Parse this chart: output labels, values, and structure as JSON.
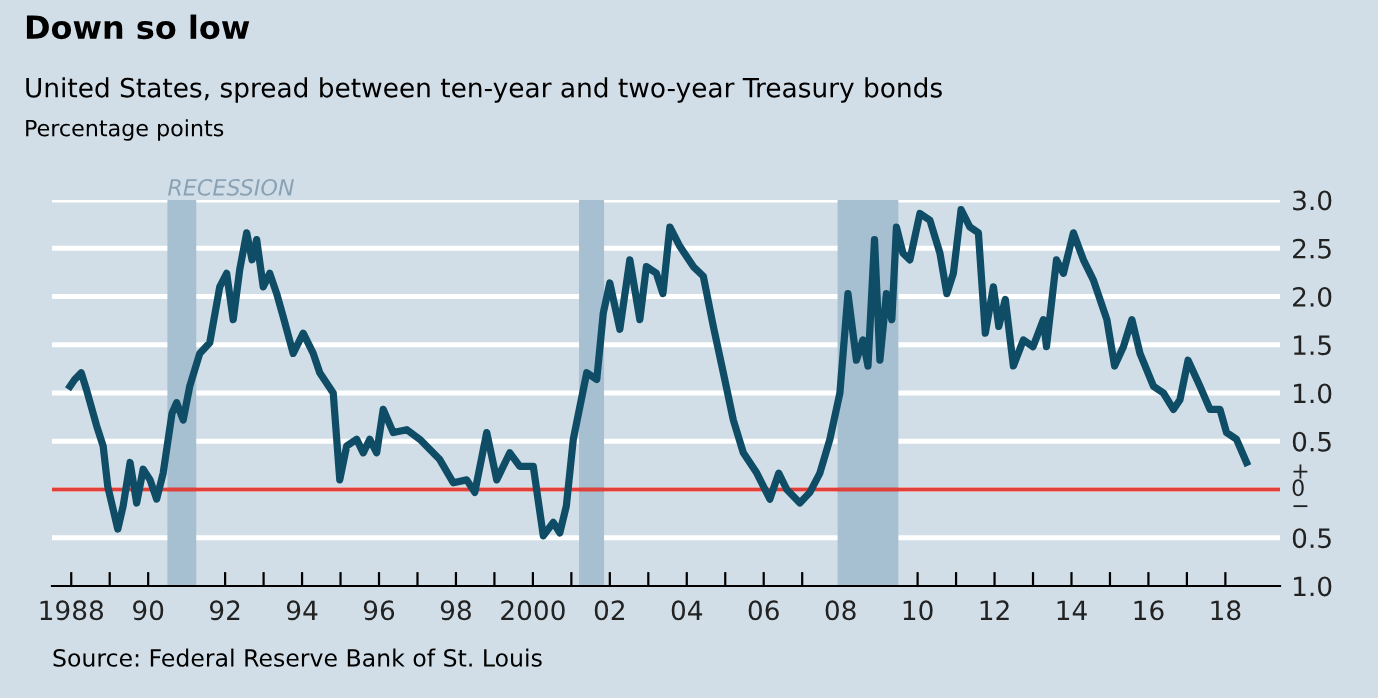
{
  "chart_data": {
    "type": "line",
    "title": "Down so low",
    "subtitle": "United States, spread between ten-year and two-year Treasury bonds",
    "ylabel": "Percentage points",
    "annotations": [
      "Source: Federal Reserve Bank of St. Louis"
    ],
    "x": [
      1987.97,
      1988.09,
      1988.26,
      1988.4,
      1988.66,
      1988.83,
      1988.95,
      1989.21,
      1989.35,
      1989.53,
      1989.7,
      1989.87,
      1990.05,
      1990.22,
      1990.39,
      1990.62,
      1990.74,
      1990.91,
      1991.08,
      1991.34,
      1991.6,
      1991.86,
      1992.04,
      1992.21,
      1992.38,
      1992.56,
      1992.7,
      1992.82,
      1992.99,
      1993.16,
      1993.34,
      1993.51,
      1993.77,
      1994.03,
      1994.29,
      1994.46,
      1994.81,
      1994.98,
      1995.16,
      1995.42,
      1995.59,
      1995.76,
      1995.94,
      1996.11,
      1996.37,
      1996.72,
      1997.06,
      1997.58,
      1997.93,
      1998.28,
      1998.49,
      1998.8,
      1999.06,
      1999.4,
      1999.66,
      2000.01,
      2000.27,
      2000.53,
      2000.7,
      2000.87,
      2001.05,
      2001.4,
      2001.66,
      2001.83,
      2002.0,
      2002.26,
      2002.52,
      2002.78,
      2002.95,
      2003.21,
      2003.38,
      2003.56,
      2003.82,
      2004.17,
      2004.43,
      2004.69,
      2004.95,
      2005.21,
      2005.47,
      2005.82,
      2006.16,
      2006.39,
      2006.6,
      2006.94,
      2007.2,
      2007.46,
      2007.72,
      2007.98,
      2008.19,
      2008.41,
      2008.58,
      2008.71,
      2008.88,
      2009.02,
      2009.19,
      2009.33,
      2009.45,
      2009.62,
      2009.8,
      2010.06,
      2010.32,
      2010.58,
      2010.76,
      2010.93,
      2011.13,
      2011.36,
      2011.58,
      2011.76,
      2011.97,
      2012.11,
      2012.28,
      2012.49,
      2012.75,
      2013.0,
      2013.27,
      2013.35,
      2013.61,
      2013.79,
      2014.05,
      2014.31,
      2014.57,
      2014.92,
      2015.12,
      2015.35,
      2015.57,
      2015.78,
      2016.13,
      2016.39,
      2016.65,
      2016.82,
      2017.03,
      2017.34,
      2017.6,
      2017.86,
      2018.03,
      2018.29,
      2018.55
    ],
    "series": [
      {
        "color": "#0f4c66",
        "values": [
          1.07,
          1.14,
          1.21,
          1.03,
          0.66,
          0.45,
          0.03,
          -0.41,
          -0.17,
          0.28,
          -0.14,
          0.21,
          0.1,
          -0.1,
          0.17,
          0.79,
          0.9,
          0.72,
          1.07,
          1.41,
          1.52,
          2.1,
          2.24,
          1.76,
          2.28,
          2.66,
          2.38,
          2.59,
          2.1,
          2.24,
          2.03,
          1.79,
          1.41,
          1.62,
          1.41,
          1.21,
          1.0,
          0.1,
          0.45,
          0.52,
          0.38,
          0.52,
          0.38,
          0.83,
          0.59,
          0.62,
          0.52,
          0.31,
          0.07,
          0.1,
          -0.03,
          0.59,
          0.1,
          0.38,
          0.24,
          0.24,
          -0.48,
          -0.34,
          -0.45,
          -0.17,
          0.52,
          1.21,
          1.14,
          1.83,
          2.14,
          1.66,
          2.38,
          1.76,
          2.31,
          2.24,
          2.03,
          2.72,
          2.52,
          2.31,
          2.21,
          1.69,
          1.21,
          0.72,
          0.38,
          0.17,
          -0.1,
          0.17,
          0.0,
          -0.14,
          -0.03,
          0.17,
          0.52,
          1.0,
          2.03,
          1.34,
          1.55,
          1.28,
          2.59,
          1.34,
          2.03,
          1.76,
          2.72,
          2.45,
          2.38,
          2.86,
          2.79,
          2.45,
          2.03,
          2.24,
          2.9,
          2.72,
          2.66,
          1.62,
          2.1,
          1.69,
          1.97,
          1.28,
          1.55,
          1.48,
          1.76,
          1.48,
          2.38,
          2.24,
          2.66,
          2.38,
          2.17,
          1.76,
          1.28,
          1.48,
          1.76,
          1.41,
          1.07,
          1.0,
          0.83,
          0.93,
          1.34,
          1.07,
          0.83,
          0.83,
          0.59,
          0.52,
          0.28
        ]
      }
    ],
    "xlim": [
      1987.5,
      2019.42
    ],
    "xticks": [
      1988,
      {
        "value": 1989,
        "label": null
      },
      {
        "value": 1990,
        "label": "90"
      },
      {
        "value": 1991,
        "label": null
      },
      {
        "value": 1992,
        "label": "92"
      },
      {
        "value": 1993,
        "label": null
      },
      {
        "value": 1994,
        "label": "94"
      },
      {
        "value": 1995,
        "label": null
      },
      {
        "value": 1996,
        "label": "96"
      },
      {
        "value": 1997,
        "label": null
      },
      {
        "value": 1998,
        "label": "98"
      },
      {
        "value": 1999,
        "label": null
      },
      2000,
      {
        "value": 2001,
        "label": null
      },
      {
        "value": 2002,
        "label": "02"
      },
      {
        "value": 2003,
        "label": null
      },
      {
        "value": 2004,
        "label": "04"
      },
      {
        "value": 2005,
        "label": null
      },
      {
        "value": 2006,
        "label": "06"
      },
      {
        "value": 2007,
        "label": null
      },
      {
        "value": 2008,
        "label": "08"
      },
      {
        "value": 2009,
        "label": null
      },
      {
        "value": 2010,
        "label": "10"
      },
      {
        "value": 2011,
        "label": null
      },
      {
        "value": 2012,
        "label": "12"
      },
      {
        "value": 2013,
        "label": null
      },
      {
        "value": 2014,
        "label": "14"
      },
      {
        "value": 2015,
        "label": null
      },
      {
        "value": 2016,
        "label": "16"
      },
      {
        "value": 2017,
        "label": null
      },
      {
        "value": 2018,
        "label": "18"
      }
    ],
    "ylim": [
      -1,
      3
    ],
    "yticks": [
      {
        "value": -1,
        "label": "1.0"
      },
      {
        "value": -0.5,
        "label": "0.5"
      },
      {
        "value": 0,
        "label": "+\n0\n−"
      },
      {
        "value": 0.5,
        "label": "0.5"
      },
      {
        "value": 1,
        "label": "1.0"
      },
      {
        "value": 1.5,
        "label": "1.5"
      },
      {
        "value": 2,
        "label": "2.0"
      },
      {
        "value": 2.5,
        "label": "2.5"
      },
      {
        "value": 3,
        "label": "3.0"
      }
    ],
    "ref_lines": [
      {
        "axis": "y",
        "value": 0,
        "color": "#e0403a"
      }
    ],
    "bands": [
      {
        "axis": "x",
        "from": 1990.5,
        "to": 1991.25,
        "label": "RECESSION",
        "color": "#a6bfd1"
      },
      {
        "axis": "x",
        "from": 2001.2,
        "to": 2001.85,
        "color": "#a6bfd1"
      },
      {
        "axis": "x",
        "from": 2007.92,
        "to": 2009.5,
        "color": "#a6bfd1"
      }
    ],
    "grid": "y",
    "legend": false,
    "line_style": "solid",
    "marker": "none"
  }
}
